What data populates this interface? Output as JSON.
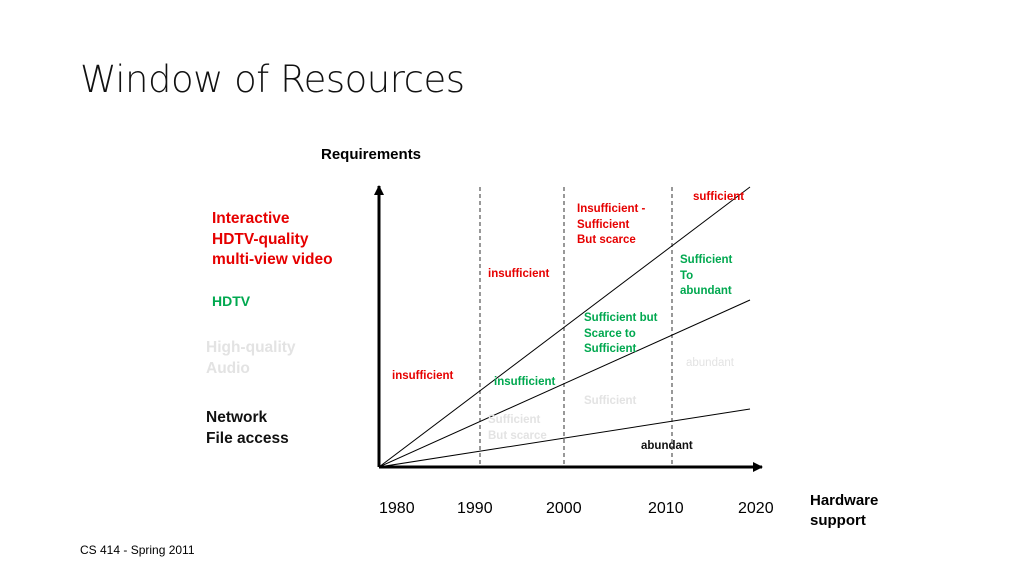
{
  "title": "Window of Resources",
  "y_axis_label": "Requirements",
  "x_axis_label": [
    "Hardware",
    "support"
  ],
  "years": [
    "1980",
    "1990",
    "2000",
    "2010",
    "2020"
  ],
  "requirements": [
    {
      "id": "interactive-hdtv",
      "lines": [
        "Interactive",
        "HDTV-quality",
        "multi-view video"
      ],
      "color": "#e60000"
    },
    {
      "id": "hdtv",
      "lines": [
        "HDTV"
      ],
      "color": "#00a84f"
    },
    {
      "id": "high-quality-audio",
      "lines": [
        "High-quality",
        "Audio"
      ],
      "color": "#e3e3e3"
    },
    {
      "id": "network-file-access",
      "lines": [
        "Network",
        "File access"
      ],
      "color": "#111111"
    }
  ],
  "annotations": [
    {
      "id": "sufficient-top",
      "lines": [
        "sufficient"
      ],
      "color": "#e60000"
    },
    {
      "id": "insufficient-sufficient-scarce",
      "lines": [
        "Insufficient -",
        "Sufficient",
        "But scarce"
      ],
      "color": "#e60000"
    },
    {
      "id": "insufficient-red-upper",
      "lines": [
        "insufficient"
      ],
      "color": "#e60000"
    },
    {
      "id": "sufficient-to-abundant",
      "lines": [
        "Sufficient",
        "To",
        "abundant"
      ],
      "color": "#00a84f"
    },
    {
      "id": "sufficient-but-scarce-to-sufficient",
      "lines": [
        "Sufficient but",
        "Scarce to",
        "Sufficient"
      ],
      "color": "#00a84f"
    },
    {
      "id": "abundant-grey",
      "lines": [
        "abundant"
      ],
      "color": "#e3e3e3"
    },
    {
      "id": "insufficient-red-lower",
      "lines": [
        "insufficient"
      ],
      "color": "#e60000"
    },
    {
      "id": "insufficient-green",
      "lines": [
        "insufficient"
      ],
      "color": "#00a84f"
    },
    {
      "id": "sufficient-grey",
      "lines": [
        "Sufficient"
      ],
      "color": "#e3e3e3"
    },
    {
      "id": "sufficient-but-scarce-grey",
      "lines": [
        "Sufficient",
        "But scarce"
      ],
      "color": "#e3e3e3"
    },
    {
      "id": "abundant-black",
      "lines": [
        "abundant"
      ],
      "color": "#111111"
    }
  ],
  "footer": "CS 414 - Spring 2011"
}
